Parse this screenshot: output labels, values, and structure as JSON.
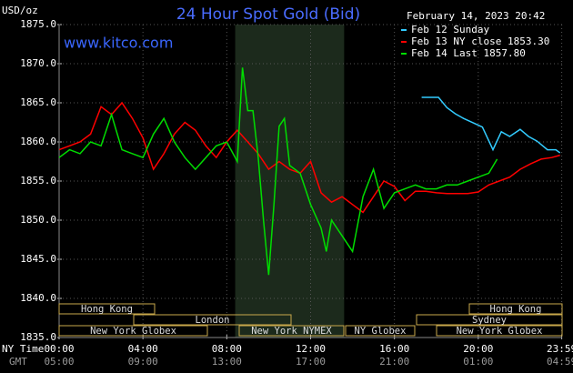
{
  "chart_data": {
    "type": "line",
    "title": "24 Hour Spot Gold (Bid)",
    "unit_label": "USD/oz",
    "timestamp": "February 14, 2023 20:42",
    "site": "www.kitco.com",
    "xlim": [
      0,
      24
    ],
    "ylim": [
      1835,
      1875
    ],
    "xticks": [
      {
        "value": 0,
        "label": "00:00"
      },
      {
        "value": 4,
        "label": "04:00"
      },
      {
        "value": 8,
        "label": "08:00"
      },
      {
        "value": 12,
        "label": "12:00"
      },
      {
        "value": 16,
        "label": "16:00"
      },
      {
        "value": 20,
        "label": "20:00"
      },
      {
        "value": 23.983,
        "label": "23:59"
      }
    ],
    "gmt_labels": [
      "05:00",
      "09:00",
      "13:00",
      "17:00",
      "21:00",
      "01:00",
      "04:59"
    ],
    "x_row_labels": [
      "NY Time",
      "GMT"
    ],
    "yticks": [
      {
        "value": 1835,
        "label": "1835.0"
      },
      {
        "value": 1840,
        "label": "1840.0"
      },
      {
        "value": 1845,
        "label": "1845.0"
      },
      {
        "value": 1850,
        "label": "1850.0"
      },
      {
        "value": 1855,
        "label": "1855.0"
      },
      {
        "value": 1860,
        "label": "1860.0"
      },
      {
        "value": 1865,
        "label": "1865.0"
      },
      {
        "value": 1870,
        "label": "1870.0"
      },
      {
        "value": 1875,
        "label": "1875.0"
      }
    ],
    "grid": true,
    "shaded_range": [
      8.4,
      13.6
    ],
    "sessions": [
      "Hong Kong",
      "Hong Kong",
      "London",
      "Sydney",
      "New York Globex",
      "New York NYMEX",
      "NY Globex",
      "New York Globex"
    ],
    "series": [
      {
        "name": "Feb 12 Sunday",
        "color": "#33ccff",
        "x": [
          17.3,
          18.1,
          18.5,
          18.9,
          19.3,
          19.8,
          20.2,
          20.7,
          21.1,
          21.5,
          22.0,
          22.4,
          22.8,
          23.3,
          23.7,
          23.9
        ],
        "values": [
          1865.7,
          1865.7,
          1864.4,
          1863.6,
          1863.0,
          1862.4,
          1861.9,
          1859.0,
          1861.3,
          1860.7,
          1861.6,
          1860.7,
          1860.1,
          1859.0,
          1859.0,
          1858.6
        ]
      },
      {
        "name": "Feb 13 NY close 1853.30",
        "color": "#ff0000",
        "x": [
          0,
          0.5,
          1,
          1.5,
          2,
          2.5,
          3,
          3.5,
          4,
          4.5,
          5,
          5.5,
          6,
          6.5,
          7,
          7.5,
          8,
          8.5,
          9,
          9.5,
          10,
          10.5,
          11,
          11.5,
          12,
          12.5,
          13,
          13.5,
          14,
          14.5,
          15,
          15.5,
          16,
          16.5,
          17,
          17.5,
          18,
          18.5,
          19,
          19.5,
          20,
          20.5,
          21,
          21.5,
          22,
          22.5,
          23,
          23.5,
          23.9
        ],
        "values": [
          1859.0,
          1859.5,
          1860.0,
          1861.0,
          1864.5,
          1863.5,
          1865.0,
          1863.0,
          1860.5,
          1856.5,
          1858.5,
          1861.0,
          1862.5,
          1861.5,
          1859.5,
          1858.0,
          1860.0,
          1861.5,
          1860.0,
          1858.5,
          1856.5,
          1857.5,
          1856.5,
          1856.0,
          1857.5,
          1853.5,
          1852.3,
          1853.0,
          1852.0,
          1851.0,
          1853.0,
          1855.0,
          1854.3,
          1852.5,
          1853.7,
          1853.7,
          1853.5,
          1853.4,
          1853.4,
          1853.4,
          1853.6,
          1854.5,
          1855.0,
          1855.5,
          1856.5,
          1857.2,
          1857.8,
          1858.0,
          1858.3
        ]
      },
      {
        "name": "Feb 14 Last 1857.80",
        "color": "#00dd00",
        "x": [
          0,
          0.5,
          1,
          1.5,
          2,
          2.5,
          3,
          3.5,
          4,
          4.5,
          5,
          5.5,
          6,
          6.5,
          7,
          7.5,
          8,
          8.5,
          8.75,
          9,
          9.25,
          9.5,
          9.75,
          10,
          10.25,
          10.5,
          10.75,
          11,
          11.5,
          12,
          12.5,
          12.75,
          13,
          13.5,
          14,
          14.5,
          15,
          15.5,
          16,
          16.5,
          17,
          17.5,
          18,
          18.5,
          19,
          19.5,
          20,
          20.5,
          20.9
        ],
        "values": [
          1858.0,
          1859.0,
          1858.5,
          1860.0,
          1859.5,
          1863.5,
          1859.0,
          1858.5,
          1858.0,
          1861.0,
          1863.0,
          1860.0,
          1858.0,
          1856.5,
          1858.0,
          1859.5,
          1860.0,
          1857.5,
          1869.5,
          1864.0,
          1864.0,
          1858.0,
          1850.0,
          1843.0,
          1852.0,
          1862.0,
          1863.0,
          1857.0,
          1856.0,
          1852.0,
          1849.0,
          1846.0,
          1850.0,
          1848.0,
          1846.0,
          1853.0,
          1856.5,
          1851.5,
          1853.5,
          1854.0,
          1854.5,
          1854.0,
          1854.0,
          1854.5,
          1854.5,
          1855.0,
          1855.5,
          1856.0,
          1857.8
        ]
      }
    ]
  }
}
